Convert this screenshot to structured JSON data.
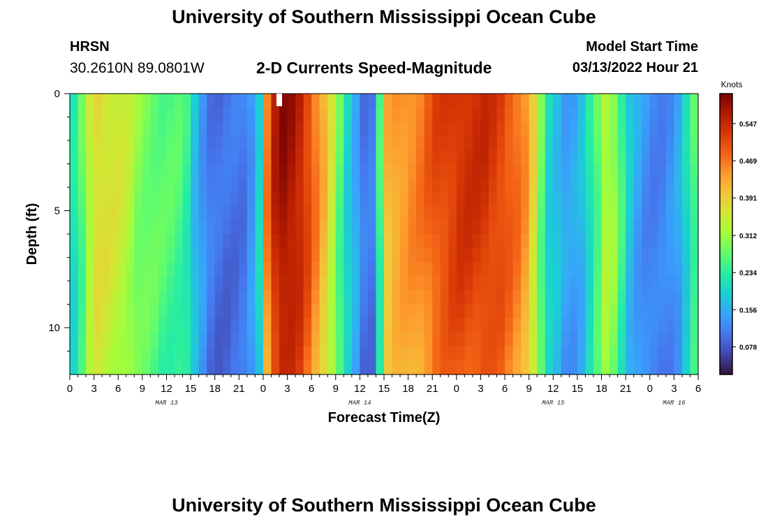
{
  "header": {
    "title": "University of Southern Mississippi Ocean Cube",
    "station_name": "HRSN",
    "coordinates": "30.2610N  89.0801W",
    "variable_title": "2-D Currents Speed-Magnitude",
    "model_start_label": "Model Start Time",
    "model_start_value": "03/13/2022 Hour 21"
  },
  "footer": {
    "title": "University of Southern Mississippi Ocean Cube"
  },
  "chart_data": {
    "type": "heatmap",
    "xlabel": "Forecast Time(Z)",
    "ylabel": "Depth (ft)",
    "x_tick_labels": [
      "0",
      "3",
      "6",
      "9",
      "12",
      "15",
      "18",
      "21",
      "0",
      "3",
      "6",
      "9",
      "12",
      "15",
      "18",
      "21",
      "0",
      "3",
      "6",
      "9",
      "12",
      "15",
      "18",
      "21",
      "0",
      "3",
      "6"
    ],
    "day_labels": [
      {
        "text": "MAR 13",
        "hour": 12
      },
      {
        "text": "MAR 14",
        "hour": 36
      },
      {
        "text": "MAR 15",
        "hour": 60
      },
      {
        "text": "MAR 16",
        "hour": 75
      }
    ],
    "xlim_hours": [
      0,
      78
    ],
    "y_tick_labels": [
      "0",
      "5",
      "10"
    ],
    "y_tick_values": [
      0,
      5,
      10
    ],
    "ylim_ft": [
      0,
      12
    ],
    "colorbar": {
      "title": "Knots",
      "tick_labels": [
        "0.547",
        "0.469",
        "0.391",
        "0.312",
        "0.234",
        "0.156",
        "0.078"
      ],
      "tick_values": [
        0.547,
        0.469,
        0.391,
        0.312,
        0.234,
        0.156,
        0.078
      ],
      "range": [
        0.02,
        0.61
      ],
      "colormap": [
        "#30123b",
        "#4145ab",
        "#4675ed",
        "#39a2fc",
        "#1bcfd4",
        "#24eca6",
        "#61fc6c",
        "#a4fc3b",
        "#d1e834",
        "#f3c63a",
        "#fe9b2d",
        "#f36315",
        "#d93806",
        "#b11901",
        "#7a0403"
      ]
    },
    "time_hours": [
      0,
      1,
      2,
      3,
      4,
      5,
      6,
      7,
      8,
      9,
      10,
      11,
      12,
      13,
      14,
      15,
      16,
      17,
      18,
      19,
      20,
      21,
      22,
      23,
      24,
      25,
      26,
      27,
      28,
      29,
      30,
      31,
      32,
      33,
      34,
      35,
      36,
      37,
      38,
      39,
      40,
      41,
      42,
      43,
      44,
      45,
      46,
      47,
      48,
      49,
      50,
      51,
      52,
      53,
      54,
      55,
      56,
      57,
      58,
      59,
      60,
      61,
      62,
      63,
      64,
      65,
      66,
      67,
      68,
      69,
      70,
      71,
      72,
      73,
      74,
      75,
      76,
      77
    ],
    "surface_speed_knots": [
      0.22,
      0.27,
      0.34,
      0.38,
      0.37,
      0.36,
      0.35,
      0.33,
      0.3,
      0.29,
      0.28,
      0.27,
      0.265,
      0.26,
      0.24,
      0.18,
      0.14,
      0.11,
      0.1,
      0.1,
      0.105,
      0.11,
      0.14,
      0.2,
      0.47,
      0.56,
      0.59,
      0.58,
      0.56,
      0.52,
      0.47,
      0.42,
      0.35,
      0.27,
      0.2,
      0.16,
      0.11,
      0.11,
      0.25,
      0.42,
      0.44,
      0.45,
      0.46,
      0.47,
      0.49,
      0.51,
      0.52,
      0.53,
      0.54,
      0.54,
      0.54,
      0.54,
      0.53,
      0.52,
      0.5,
      0.48,
      0.45,
      0.38,
      0.28,
      0.2,
      0.18,
      0.15,
      0.15,
      0.17,
      0.22,
      0.27,
      0.33,
      0.31,
      0.25,
      0.18,
      0.15,
      0.13,
      0.12,
      0.12,
      0.13,
      0.15,
      0.2,
      0.26
    ]
  }
}
